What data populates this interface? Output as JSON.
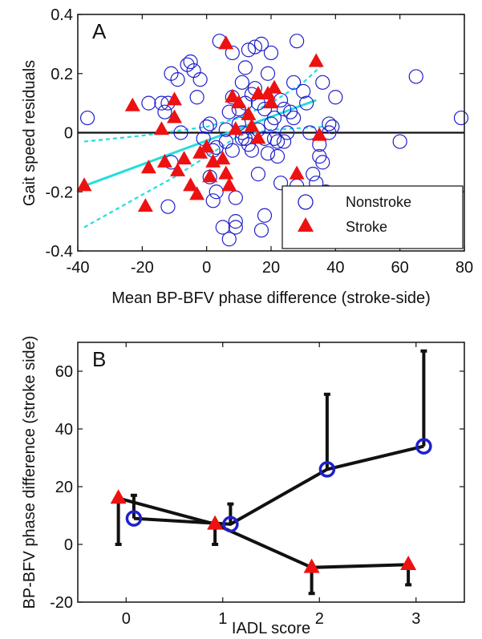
{
  "chart_data": [
    {
      "type": "scatter",
      "panel_label": "A",
      "xlabel": "Mean BP-BFV phase difference (stroke-side)",
      "ylabel": "Gait speed residuals",
      "xlim": [
        -40,
        80
      ],
      "ylim": [
        -0.4,
        0.4
      ],
      "xticks": [
        "-40",
        "-20",
        "0",
        "20",
        "40",
        "60",
        "80"
      ],
      "yticks": [
        "-0.4",
        "-0.2",
        "0",
        "0.2",
        "0.4"
      ],
      "grid": false,
      "legend_position": "bottom-right",
      "zero_line": 0,
      "series": [
        {
          "name": "Nonstroke",
          "marker": "open-circle",
          "color": "#1f1fcc",
          "points": [
            [
              -37,
              0.05
            ],
            [
              -18,
              0.1
            ],
            [
              -14,
              0.1
            ],
            [
              -13,
              0.07
            ],
            [
              -12,
              0.1
            ],
            [
              -11,
              0.2
            ],
            [
              -9,
              0.18
            ],
            [
              -8,
              0.0
            ],
            [
              -6,
              0.23
            ],
            [
              -5,
              0.24
            ],
            [
              -4,
              0.21
            ],
            [
              -3,
              0.12
            ],
            [
              -2,
              0.18
            ],
            [
              -12,
              -0.25
            ],
            [
              -11,
              -0.1
            ],
            [
              -1,
              -0.02
            ],
            [
              0,
              0.02
            ],
            [
              1,
              0.03
            ],
            [
              1,
              -0.15
            ],
            [
              2,
              -0.06
            ],
            [
              2,
              -0.23
            ],
            [
              3,
              -0.05
            ],
            [
              3,
              -0.2
            ],
            [
              4,
              0.31
            ],
            [
              5,
              -0.32
            ],
            [
              6,
              0.01
            ],
            [
              6,
              -0.03
            ],
            [
              7,
              0.07
            ],
            [
              7,
              -0.36
            ],
            [
              8,
              0.27
            ],
            [
              8,
              0.12
            ],
            [
              8,
              -0.06
            ],
            [
              9,
              -0.3
            ],
            [
              9,
              -0.22
            ],
            [
              9,
              -0.32
            ],
            [
              10,
              0.08
            ],
            [
              10,
              0.03
            ],
            [
              11,
              -0.02
            ],
            [
              11,
              0.17
            ],
            [
              11,
              0.0
            ],
            [
              12,
              0.22
            ],
            [
              12,
              0.1
            ],
            [
              12,
              -0.02
            ],
            [
              13,
              0.28
            ],
            [
              13,
              -0.04
            ],
            [
              14,
              0.13
            ],
            [
              14,
              -0.06
            ],
            [
              15,
              0.29
            ],
            [
              15,
              0.15
            ],
            [
              16,
              0.1
            ],
            [
              16,
              0.01
            ],
            [
              16,
              -0.14
            ],
            [
              17,
              0.3
            ],
            [
              17,
              -0.33
            ],
            [
              18,
              0.08
            ],
            [
              18,
              -0.02
            ],
            [
              18,
              -0.28
            ],
            [
              19,
              0.2
            ],
            [
              19,
              -0.07
            ],
            [
              20,
              0.27
            ],
            [
              20,
              0.03
            ],
            [
              21,
              0.05
            ],
            [
              21,
              -0.02
            ],
            [
              22,
              -0.08
            ],
            [
              22,
              -0.03
            ],
            [
              23,
              0.11
            ],
            [
              23,
              -0.17
            ],
            [
              24,
              0.08
            ],
            [
              24,
              -0.03
            ],
            [
              25,
              0.0
            ],
            [
              26,
              0.07
            ],
            [
              27,
              0.17
            ],
            [
              27,
              0.05
            ],
            [
              28,
              0.31
            ],
            [
              28,
              -0.18
            ],
            [
              30,
              0.14
            ],
            [
              31,
              0.1
            ],
            [
              32,
              0.0
            ],
            [
              33,
              -0.14
            ],
            [
              34,
              -0.17
            ],
            [
              35,
              -0.04
            ],
            [
              35,
              -0.08
            ],
            [
              36,
              0.17
            ],
            [
              36,
              -0.1
            ],
            [
              37,
              -0.2
            ],
            [
              38,
              0.03
            ],
            [
              38,
              0.0
            ],
            [
              39,
              0.02
            ],
            [
              40,
              0.12
            ],
            [
              60,
              -0.03
            ],
            [
              65,
              0.19
            ],
            [
              79,
              0.05
            ]
          ]
        },
        {
          "name": "Stroke",
          "marker": "filled-triangle",
          "color": "#ee1111",
          "points": [
            [
              -38,
              -0.18
            ],
            [
              -23,
              0.09
            ],
            [
              -19,
              -0.25
            ],
            [
              -18,
              -0.12
            ],
            [
              -14,
              0.01
            ],
            [
              -13,
              -0.1
            ],
            [
              -10,
              0.05
            ],
            [
              -10,
              0.11
            ],
            [
              -9,
              -0.13
            ],
            [
              -7,
              -0.09
            ],
            [
              -5,
              -0.18
            ],
            [
              -3,
              -0.21
            ],
            [
              -2,
              -0.07
            ],
            [
              0,
              -0.05
            ],
            [
              1,
              -0.15
            ],
            [
              2,
              -0.1
            ],
            [
              5,
              -0.09
            ],
            [
              6,
              -0.14
            ],
            [
              6,
              0.3
            ],
            [
              7,
              -0.18
            ],
            [
              8,
              0.12
            ],
            [
              9,
              0.01
            ],
            [
              10,
              0.1
            ],
            [
              13,
              0.06
            ],
            [
              14,
              0.02
            ],
            [
              16,
              0.13
            ],
            [
              16,
              -0.02
            ],
            [
              19,
              0.13
            ],
            [
              20,
              0.1
            ],
            [
              21,
              0.15
            ],
            [
              28,
              -0.14
            ],
            [
              34,
              0.24
            ],
            [
              35,
              -0.01
            ]
          ]
        }
      ],
      "fit_line": {
        "color": "#22dddd",
        "x": [
          -38,
          34
        ],
        "y": [
          -0.18,
          0.11
        ]
      },
      "confidence_band": {
        "color": "#22dddd",
        "upper": [
          [
            -38,
            -0.03
          ],
          [
            -20,
            -0.01
          ],
          [
            0,
            0.02
          ],
          [
            10,
            0.05
          ],
          [
            20,
            0.1
          ],
          [
            30,
            0.17
          ],
          [
            36,
            0.23
          ]
        ],
        "lower": [
          [
            -38,
            -0.32
          ],
          [
            -20,
            -0.21
          ],
          [
            -10,
            -0.15
          ],
          [
            0,
            -0.08
          ],
          [
            10,
            -0.01
          ],
          [
            20,
            0.01
          ],
          [
            36,
            0.02
          ]
        ]
      }
    },
    {
      "type": "line",
      "panel_label": "B",
      "xlabel": "IADL score",
      "ylabel": "BP-BFV phase difference (stroke side)",
      "xlim": [
        -0.5,
        3.5
      ],
      "ylim": [
        -20,
        70
      ],
      "xticks": [
        "0",
        "1",
        "2",
        "3"
      ],
      "yticks": [
        "-20",
        "0",
        "20",
        "40",
        "60"
      ],
      "grid": false,
      "series": [
        {
          "name": "Nonstroke",
          "marker": "open-circle",
          "color": "#1f1fcc",
          "x": [
            0.08,
            1.08,
            2.08,
            3.08
          ],
          "values": [
            9,
            7,
            26,
            34
          ],
          "error_upper": [
            17,
            14,
            52,
            67
          ],
          "error_lower": [
            null,
            null,
            null,
            null
          ]
        },
        {
          "name": "Stroke",
          "marker": "filled-triangle",
          "color": "#ee1111",
          "x": [
            -0.08,
            0.92,
            1.92,
            2.92
          ],
          "values": [
            16,
            7,
            -8,
            -7
          ],
          "error_upper": [
            null,
            null,
            null,
            null
          ],
          "error_lower": [
            0,
            0,
            -17,
            -14
          ]
        }
      ]
    }
  ]
}
